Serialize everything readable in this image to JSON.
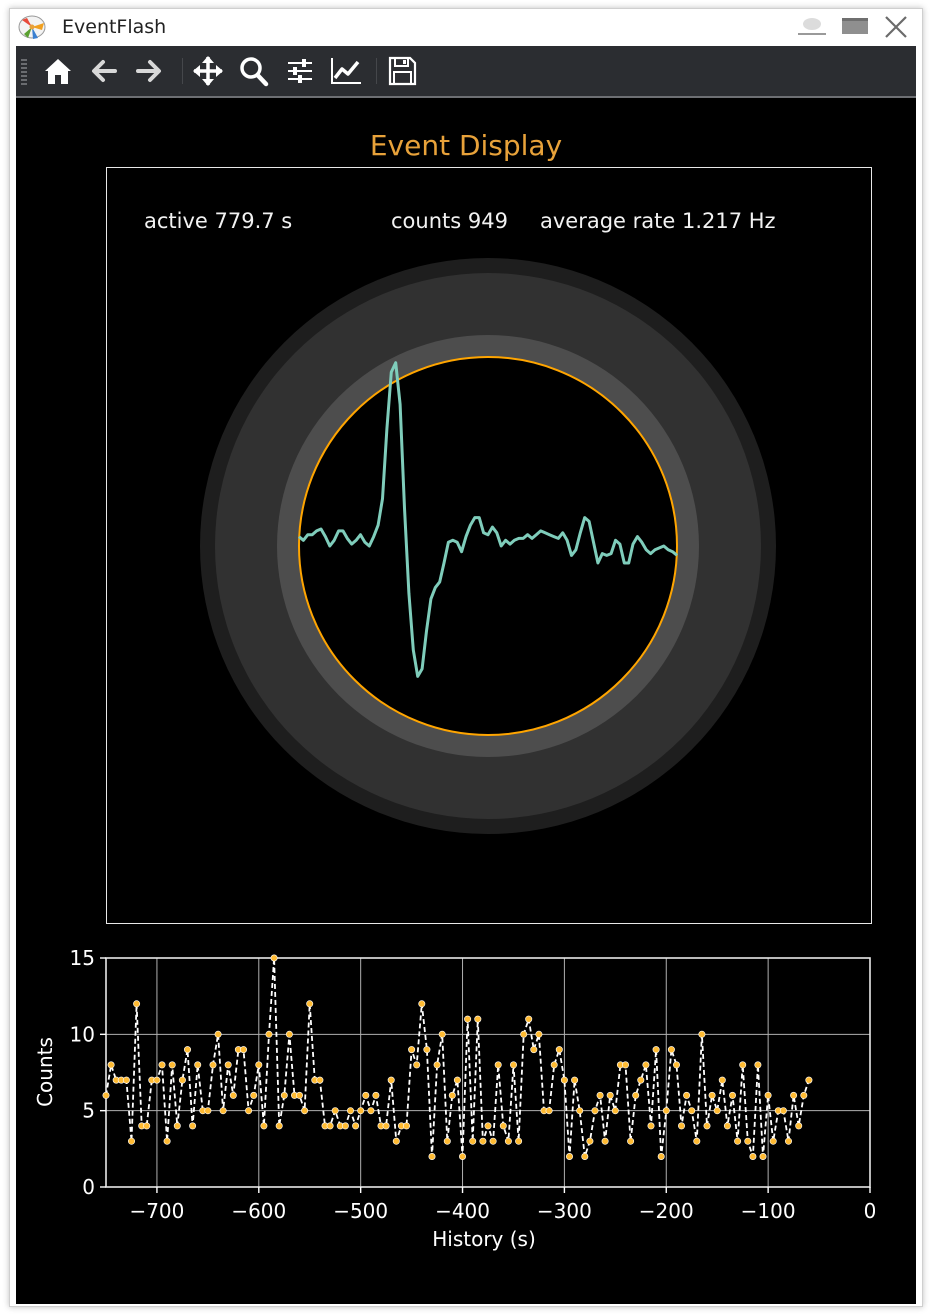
{
  "window": {
    "title": "EventFlash"
  },
  "toolbar": {
    "buttons": [
      {
        "name": "home",
        "icon": "home-icon"
      },
      {
        "name": "back",
        "icon": "arrow-left-icon"
      },
      {
        "name": "forward",
        "icon": "arrow-right-icon"
      },
      {
        "name": "pan",
        "icon": "move-icon"
      },
      {
        "name": "zoom",
        "icon": "magnifier-icon"
      },
      {
        "name": "configure-subplots",
        "icon": "sliders-icon"
      },
      {
        "name": "edit-axes",
        "icon": "chart-line-icon"
      },
      {
        "name": "save",
        "icon": "floppy-disk-icon"
      }
    ]
  },
  "figure": {
    "title": "Event Display",
    "stats": {
      "active": "active 779.7 s",
      "counts": "counts 949",
      "rate": "average rate 1.217 Hz"
    }
  },
  "colors": {
    "title": "#e8a23a",
    "trace": "#7fcdbb",
    "circle": "#ffa500",
    "markers": "#ffbb33",
    "background": "#000000"
  },
  "chart_data": [
    {
      "type": "line",
      "name": "event-waveform",
      "y_relative_to_circle_radius": [
        0.05,
        0.03,
        0.06,
        0.06,
        0.08,
        0.09,
        0.05,
        0.0,
        0.03,
        0.08,
        0.08,
        0.04,
        0.01,
        0.03,
        0.06,
        0.02,
        0.0,
        0.05,
        0.11,
        0.25,
        0.62,
        0.92,
        0.97,
        0.75,
        0.2,
        -0.25,
        -0.55,
        -0.69,
        -0.65,
        -0.45,
        -0.28,
        -0.22,
        -0.19,
        -0.09,
        0.02,
        0.03,
        0.02,
        -0.03,
        0.05,
        0.11,
        0.15,
        0.15,
        0.07,
        0.06,
        0.1,
        0.07,
        0.0,
        0.03,
        0.01,
        0.03,
        0.04,
        0.04,
        0.06,
        0.04,
        0.06,
        0.08,
        0.07,
        0.06,
        0.05,
        0.04,
        0.07,
        0.03,
        -0.05,
        -0.02,
        0.07,
        0.15,
        0.13,
        0.02,
        -0.09,
        -0.04,
        -0.05,
        -0.04,
        0.03,
        0.01,
        -0.09,
        -0.09,
        0.01,
        0.05,
        0.02,
        -0.02,
        -0.04,
        -0.02,
        -0.01,
        0.0,
        -0.02,
        -0.03,
        -0.05
      ]
    },
    {
      "type": "line",
      "name": "rate-history",
      "xlabel": "History (s)",
      "ylabel": "Counts",
      "xlim": [
        -750,
        0
      ],
      "ylim": [
        0,
        15
      ],
      "xticks": [
        -700,
        -600,
        -500,
        -400,
        -300,
        -200,
        -100,
        0
      ],
      "xtick_labels": [
        "−700",
        "−600",
        "−500",
        "−400",
        "−300",
        "−200",
        "−100",
        "0"
      ],
      "yticks": [
        0,
        5,
        10,
        15
      ],
      "ytick_labels": [
        "0",
        "5",
        "10",
        "15"
      ],
      "grid": true,
      "x_start": -750,
      "x_step": 5,
      "values": [
        6,
        8,
        7,
        7,
        7,
        3,
        12,
        4,
        4,
        7,
        7,
        8,
        3,
        8,
        4,
        7,
        9,
        4,
        8,
        5,
        5,
        8,
        10,
        5,
        8,
        6,
        9,
        9,
        5,
        6,
        8,
        4,
        10,
        15,
        4,
        6,
        10,
        6,
        6,
        5,
        12,
        7,
        7,
        4,
        4,
        5,
        4,
        4,
        5,
        4,
        5,
        6,
        5,
        6,
        4,
        4,
        7,
        3,
        4,
        4,
        9,
        8,
        12,
        9,
        2,
        8,
        10,
        3,
        6,
        7,
        2,
        11,
        3,
        11,
        3,
        4,
        3,
        8,
        4,
        3,
        8,
        3,
        10,
        11,
        9,
        10,
        5,
        5,
        8,
        9,
        7,
        2,
        7,
        5,
        2,
        3,
        5,
        6,
        3,
        6,
        5,
        8,
        8,
        3,
        6,
        7,
        8,
        4,
        9,
        2,
        5,
        9,
        8,
        4,
        6,
        5,
        3,
        10,
        4,
        6,
        5,
        7,
        4,
        6,
        3,
        8,
        3,
        2,
        8,
        2,
        6,
        3,
        5,
        5,
        3,
        6,
        4,
        6,
        7
      ]
    }
  ]
}
